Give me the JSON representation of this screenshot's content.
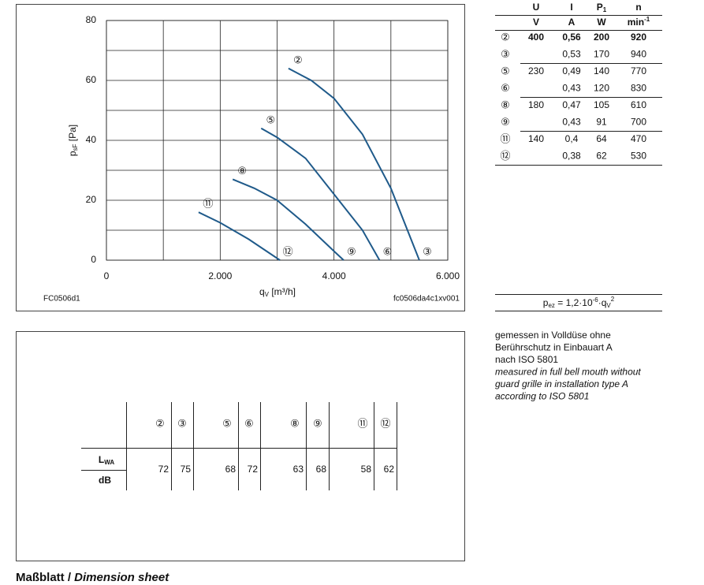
{
  "chart_data": {
    "type": "line",
    "ylabel": {
      "symbol": "p",
      "sub": "sF",
      "unit": " [Pa]"
    },
    "xlabel": {
      "symbol": "q",
      "sub": "V",
      "unit": " [m³/h]"
    },
    "xlim": [
      0,
      6000
    ],
    "ylim": [
      0,
      80
    ],
    "xticks": [
      {
        "value": 0,
        "label": "0"
      },
      {
        "value": 2000,
        "label": "2.000"
      },
      {
        "value": 4000,
        "label": "4.000"
      },
      {
        "value": 6000,
        "label": "6.000"
      }
    ],
    "yticks": [
      0,
      20,
      40,
      60,
      80
    ],
    "grid": true,
    "notes": [
      "FC0506d1",
      "fc0506da4c1xv001"
    ],
    "series": [
      {
        "start_label": "②",
        "end_label": "③",
        "color": "#1f5a8a",
        "x": [
          3200,
          3600,
          4000,
          4500,
          5000,
          5500
        ],
        "values": [
          64,
          60,
          54,
          42,
          24,
          0
        ]
      },
      {
        "start_label": "⑤",
        "end_label": "⑥",
        "color": "#1f5a8a",
        "x": [
          2720,
          3000,
          3500,
          4000,
          4500,
          4800
        ],
        "values": [
          44,
          41,
          34,
          22,
          10,
          0
        ]
      },
      {
        "start_label": "⑧",
        "end_label": "⑨",
        "color": "#1f5a8a",
        "x": [
          2220,
          2600,
          3000,
          3500,
          4000,
          4170
        ],
        "values": [
          27,
          24,
          20,
          12,
          3,
          0
        ]
      },
      {
        "start_label": "⑪",
        "end_label": "⑫",
        "color": "#1f5a8a",
        "x": [
          1620,
          2000,
          2500,
          3050
        ],
        "values": [
          16,
          12.5,
          7,
          0
        ]
      }
    ]
  },
  "operating_table": {
    "headers": [
      {
        "symbol": "U",
        "unit": "V"
      },
      {
        "symbol": "I",
        "unit": "A"
      },
      {
        "symbol": "P",
        "sub": "1",
        "unit": "W"
      },
      {
        "symbol": "n",
        "unit": "min",
        "sup": "-1"
      }
    ],
    "rows": [
      [
        "②",
        "400",
        "0,56",
        "200",
        "920"
      ],
      [
        "③",
        null,
        "0,53",
        "170",
        "940"
      ],
      [
        "⑤",
        "230",
        "0,49",
        "140",
        "770"
      ],
      [
        "⑥",
        null,
        "0,43",
        "120",
        "830"
      ],
      [
        "⑧",
        "180",
        "0,47",
        "105",
        "610"
      ],
      [
        "⑨",
        null,
        "0,43",
        "91",
        "700"
      ],
      [
        "⑪",
        "140",
        "0,4",
        "64",
        "470"
      ],
      [
        "⑫",
        null,
        "0,38",
        "62",
        "530"
      ]
    ]
  },
  "formula": {
    "symbol": "p",
    "sub": "ez",
    "text": " = 1,2·10",
    "exp": "-6",
    "mul": "·q",
    "sub2": "V",
    "sup": "2"
  },
  "notes": {
    "german": [
      "gemessen in Volldüse ohne",
      "Berührschutz in Einbauart A",
      "nach ISO 5801"
    ],
    "english": [
      "measured in full bell mouth without",
      "guard grille in installation type A",
      "according to ISO 5801"
    ]
  },
  "sound_table": {
    "markers": [
      "②",
      "③",
      "⑤",
      "⑥",
      "⑧",
      "⑨",
      "⑪",
      "⑫"
    ],
    "label": {
      "symbol": "L",
      "sub": "WA"
    },
    "unit": "dB",
    "values": [
      "72",
      "75",
      "68",
      "72",
      "63",
      "68",
      "58",
      "62"
    ]
  },
  "footer": {
    "bold": "Maßblatt / ",
    "italic": "Dimension sheet"
  }
}
